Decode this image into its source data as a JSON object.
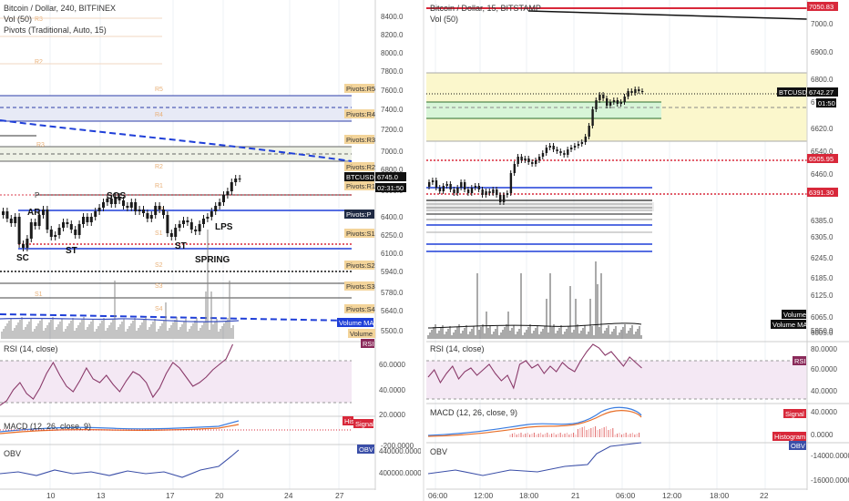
{
  "left": {
    "title": "Bitcoin / Dollar, 240, BITFINEX",
    "vol_label": "Vol (50)",
    "pivots_label": "Pivots (Traditional, Auto, 15)",
    "price_ticks": [
      "8400.0",
      "8200.0",
      "8000.0",
      "7800.0",
      "7600.0",
      "7400.0",
      "7200.0",
      "7000.0",
      "6800.0",
      "6600.0",
      "6400.0",
      "6250.0",
      "6100.0",
      "5940.0",
      "5780.0",
      "5640.0",
      "5500.0"
    ],
    "pivot_tags": [
      "Pivots:R5",
      "Pivots:R4",
      "Pivots:R3",
      "Pivots:R2",
      "Pivots:R1",
      "Pivots:P",
      "Pivots:S1",
      "Pivots:S2",
      "Pivots:S3",
      "Pivots:S4"
    ],
    "faint_levels": [
      "R3",
      "R2",
      "R5",
      "R4",
      "R3",
      "R2",
      "R1",
      "P",
      "S1",
      "S2",
      "S3",
      "S1",
      "S4"
    ],
    "symbol_tag": "BTCUSD",
    "price": "6745.0",
    "countdown": "02:31:50",
    "wyckoff": [
      "SC",
      "AR",
      "ST",
      "SOS",
      "ST",
      "LPS",
      "SPRING"
    ],
    "volume_ma_tag": "Volume MA",
    "volume_tag": "Volume",
    "p_marker": "P",
    "rsi_label": "RSI (14, close)",
    "rsi_ticks": [
      "60.0000",
      "40.0000",
      "20.0000"
    ],
    "rsi_tag": "RSI",
    "macd_label": "MACD (12, 26, close, 9)",
    "macd_ticks": [
      "-200.0000"
    ],
    "hist_tag": "Histogram",
    "signal_tag": "Signal",
    "obv_label": "OBV",
    "obv_ticks": [
      "440000.0000",
      "400000.0000"
    ],
    "obv_tag": "OBV",
    "x_ticks": [
      "10",
      "13",
      "17",
      "20",
      "24",
      "27"
    ]
  },
  "right": {
    "title": "Bitcoin / Dollar, 15, BITSTAMP",
    "vol_label": "Vol (50)",
    "price_ticks": [
      "7000.0",
      "6900.0",
      "6800.0",
      "6720.0",
      "6620.0",
      "6540.0",
      "6460.0",
      "6385.0",
      "6305.0",
      "6245.0",
      "6185.0",
      "6125.0",
      "6065.0",
      "6005.0",
      "5950.0"
    ],
    "top_tag": "7050.83",
    "tag_6505": "6505.95",
    "tag_6391": "6391.30",
    "symbol_tag": "BTCUSD",
    "price": "6742.27",
    "countdown": "01:50",
    "volume_tag": "Volume",
    "volume_ma_tag": "Volume MA",
    "rsi_label": "RSI (14, close)",
    "rsi_ticks": [
      "80.0000",
      "60.0000",
      "40.0000"
    ],
    "rsi_tag": "RSI",
    "macd_label": "MACD (12, 26, close, 9)",
    "macd_ticks": [
      "40.0000",
      "0.0000"
    ],
    "signal_tag": "Signal",
    "hist_tag": "Histogram",
    "obv_label": "OBV",
    "obv_ticks": [
      "-14000.0000",
      "-16000.0000"
    ],
    "obv_tag": "OBV",
    "x_ticks": [
      "06:00",
      "12:00",
      "18:00",
      "21",
      "06:00",
      "12:00",
      "18:00",
      "22"
    ]
  },
  "colors": {
    "grid": "#eef0f4",
    "axis_text": "#4a4a4a",
    "candle": "#1a1a1a",
    "blue_line": "#1f3fd8",
    "red_dotted": "#d8283a",
    "pivot_tag_bg": "#f3d49a",
    "rsi_band": "#f4e8f4",
    "rsi_line": "#8a3a6a",
    "macd_blue": "#3b7de0",
    "macd_orange": "#e8702a",
    "obv_line": "#3b4fa8",
    "yellow_zone": "#fbf7cc",
    "green_zone": "#d8f5d8"
  }
}
